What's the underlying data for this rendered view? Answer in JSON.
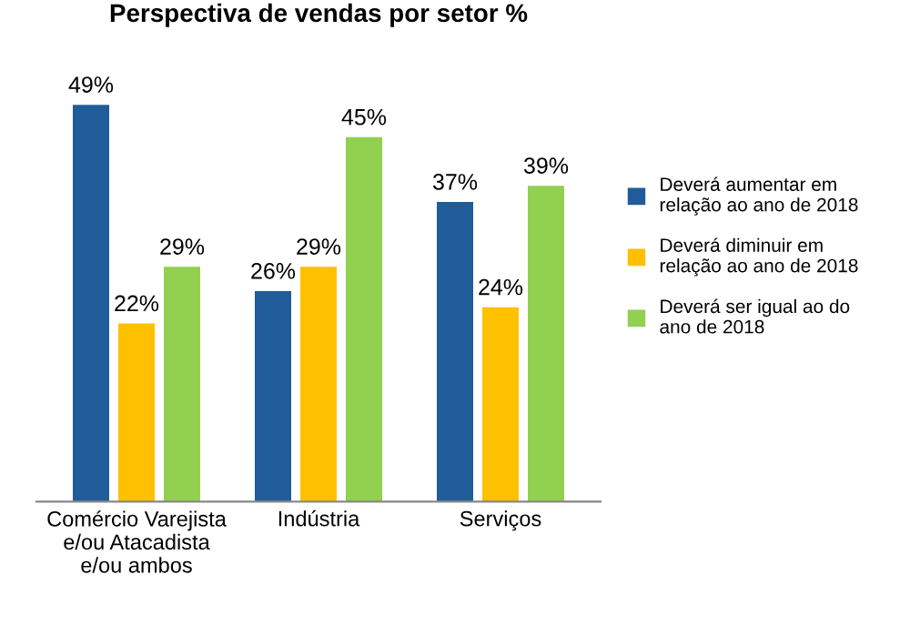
{
  "chart_data": {
    "type": "bar",
    "title": "Perspectiva de vendas por setor %",
    "categories": [
      "Comércio Varejista\ne/ou Atacadista\ne/ou ambos",
      "Indústria",
      "Serviços"
    ],
    "series": [
      {
        "name": "Deverá aumentar em\nrelação ao ano de 2018",
        "color": "#1f5c99",
        "values": [
          49,
          26,
          37
        ],
        "value_labels": [
          "49%",
          "26%",
          "37%"
        ]
      },
      {
        "name": "Deverá diminuir em\nrelação ao ano de 2018",
        "color": "#ffc000",
        "values": [
          22,
          29,
          24
        ],
        "value_labels": [
          "22%",
          "29%",
          "24%"
        ]
      },
      {
        "name": "Deverá ser igual ao do\nano de 2018",
        "color": "#92d050",
        "values": [
          29,
          45,
          39
        ],
        "value_labels": [
          "29%",
          "45%",
          "39%"
        ]
      }
    ],
    "legend": "right"
  }
}
